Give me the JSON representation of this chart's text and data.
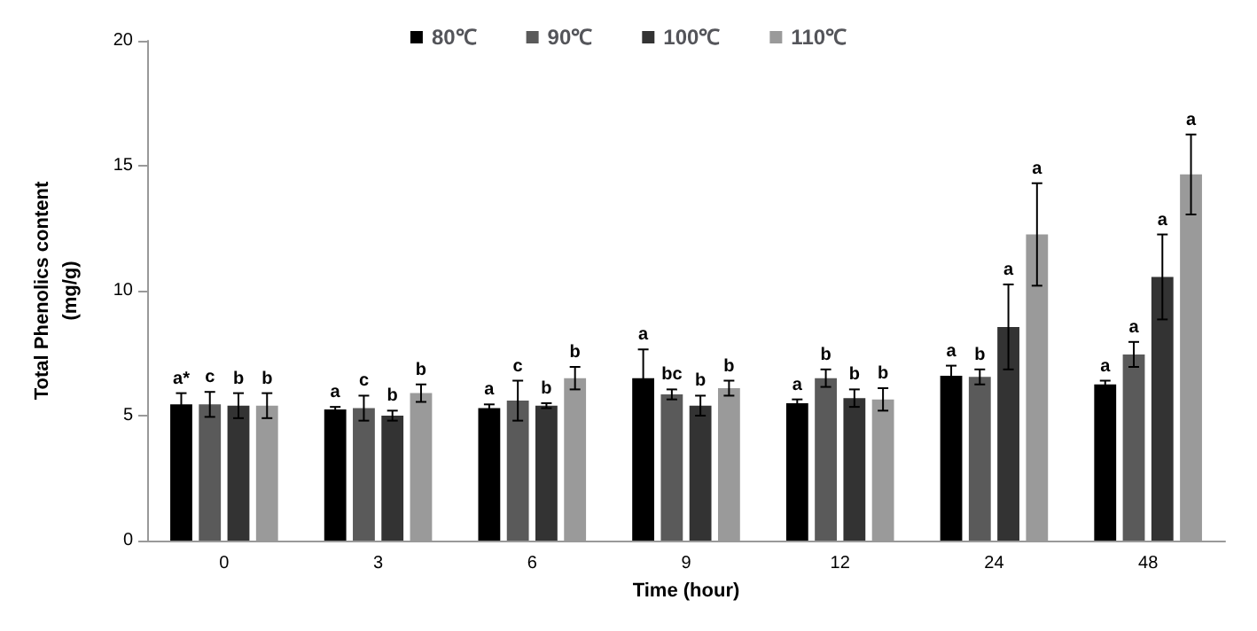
{
  "chart_data": {
    "type": "bar",
    "xlabel": "Time (hour)",
    "ylabel": "Total Phenolics content\n(mg/g)",
    "categories": [
      "0",
      "3",
      "6",
      "9",
      "12",
      "24",
      "48"
    ],
    "ylim": [
      0,
      20
    ],
    "yticks": [
      0,
      5,
      10,
      15,
      20
    ],
    "grid": false,
    "legend": "top",
    "series": [
      {
        "name": "80℃",
        "color": "#000000",
        "values": [
          5.45,
          5.25,
          5.3,
          6.5,
          5.5,
          6.6,
          6.25
        ],
        "errors": [
          0.45,
          0.1,
          0.15,
          1.15,
          0.15,
          0.4,
          0.15
        ],
        "value_labels": [
          "a*",
          "a",
          "a",
          "a",
          "a",
          "a",
          "a"
        ]
      },
      {
        "name": "90℃",
        "color": "#5a5a5a",
        "values": [
          5.45,
          5.3,
          5.6,
          5.85,
          6.5,
          6.55,
          7.45
        ],
        "errors": [
          0.5,
          0.5,
          0.8,
          0.2,
          0.35,
          0.3,
          0.5
        ],
        "value_labels": [
          "c",
          "c",
          "c",
          "bc",
          "b",
          "b",
          "a"
        ]
      },
      {
        "name": "100℃",
        "color": "#333333",
        "values": [
          5.4,
          5.0,
          5.4,
          5.4,
          5.7,
          8.55,
          10.55
        ],
        "errors": [
          0.5,
          0.2,
          0.1,
          0.4,
          0.35,
          1.7,
          1.7
        ],
        "value_labels": [
          "b",
          "b",
          "b",
          "b",
          "b",
          "a",
          "a"
        ]
      },
      {
        "name": "110℃",
        "color": "#9a9a9a",
        "values": [
          5.4,
          5.9,
          6.5,
          6.1,
          5.65,
          12.25,
          14.65
        ],
        "errors": [
          0.5,
          0.35,
          0.45,
          0.3,
          0.45,
          2.05,
          1.6
        ],
        "value_labels": [
          "b",
          "b",
          "b",
          "b",
          "b",
          "a",
          "a"
        ]
      }
    ]
  }
}
